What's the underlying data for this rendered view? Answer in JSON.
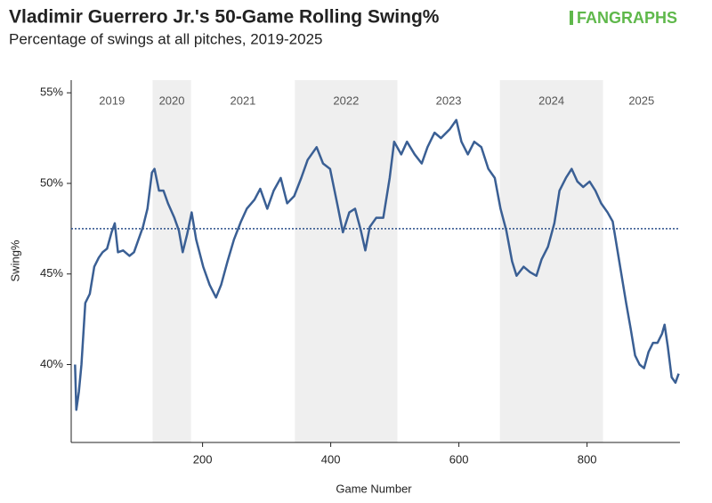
{
  "chart_data": {
    "type": "line",
    "title": "Vladimir Guerrero Jr.'s 50-Game Rolling Swing%",
    "subtitle": "Percentage of swings at all pitches, 2019-2025",
    "brand": "FANGRAPHS",
    "xlabel": "Game Number",
    "ylabel": "Swing%",
    "xlim": [
      -5,
      945
    ],
    "ylim": [
      35.7,
      55.7
    ],
    "xticks": [
      200,
      400,
      600,
      800
    ],
    "yticks": [
      {
        "value": 40,
        "label": "40%"
      },
      {
        "value": 45,
        "label": "45%"
      },
      {
        "value": 50,
        "label": "50%"
      },
      {
        "value": 55,
        "label": "55%"
      }
    ],
    "reference_line": 47.5,
    "seasons": [
      {
        "name": "2019",
        "start": -5,
        "end": 122,
        "shaded": false
      },
      {
        "name": "2020",
        "start": 122,
        "end": 182,
        "shaded": true
      },
      {
        "name": "2021",
        "start": 182,
        "end": 344,
        "shaded": false
      },
      {
        "name": "2022",
        "start": 344,
        "end": 504,
        "shaded": true
      },
      {
        "name": "2023",
        "start": 504,
        "end": 664,
        "shaded": false
      },
      {
        "name": "2024",
        "start": 664,
        "end": 825,
        "shaded": true
      },
      {
        "name": "2025",
        "start": 825,
        "end": 945,
        "shaded": false
      }
    ],
    "shade_color": "#efefef",
    "x": [
      1,
      3,
      7,
      11,
      17,
      24,
      31,
      38,
      44,
      51,
      58,
      63,
      68,
      76,
      86,
      93,
      100,
      107,
      114,
      121,
      125,
      132,
      139,
      146,
      156,
      163,
      169,
      176,
      183,
      190,
      201,
      211,
      221,
      229,
      239,
      249,
      260,
      269,
      281,
      290,
      301,
      311,
      322,
      332,
      343,
      354,
      364,
      378,
      388,
      399,
      410,
      419,
      429,
      438,
      447,
      454,
      461,
      471,
      482,
      492,
      499,
      510,
      519,
      531,
      542,
      551,
      562,
      572,
      586,
      596,
      604,
      614,
      624,
      635,
      646,
      656,
      665,
      674,
      683,
      690,
      701,
      711,
      721,
      729,
      739,
      749,
      757,
      767,
      776,
      785,
      794,
      804,
      813,
      822,
      832,
      840,
      847,
      854,
      861,
      868,
      875,
      882,
      889,
      896,
      903,
      910,
      917,
      921,
      926,
      932,
      938,
      943
    ],
    "series": [
      {
        "name": "Swing%",
        "color": "#3a5f94",
        "values": [
          40.0,
          37.5,
          38.5,
          40.0,
          43.4,
          43.9,
          45.4,
          45.9,
          46.2,
          46.4,
          47.3,
          47.8,
          46.2,
          46.3,
          46.0,
          46.2,
          46.9,
          47.6,
          48.6,
          50.6,
          50.8,
          49.6,
          49.6,
          48.9,
          48.1,
          47.4,
          46.2,
          47.2,
          48.4,
          46.9,
          45.4,
          44.4,
          43.7,
          44.4,
          45.7,
          46.9,
          47.9,
          48.6,
          49.1,
          49.7,
          48.6,
          49.6,
          50.3,
          48.9,
          49.3,
          50.3,
          51.3,
          52.0,
          51.1,
          50.8,
          48.9,
          47.3,
          48.4,
          48.6,
          47.4,
          46.3,
          47.6,
          48.1,
          48.1,
          50.3,
          52.3,
          51.6,
          52.3,
          51.6,
          51.1,
          52.0,
          52.8,
          52.5,
          53.0,
          53.5,
          52.3,
          51.6,
          52.3,
          52.0,
          50.8,
          50.3,
          48.6,
          47.4,
          45.7,
          44.9,
          45.4,
          45.1,
          44.9,
          45.8,
          46.5,
          47.8,
          49.6,
          50.3,
          50.8,
          50.1,
          49.8,
          50.1,
          49.6,
          48.9,
          48.4,
          47.9,
          46.4,
          44.9,
          43.4,
          42.0,
          40.5,
          40.0,
          39.8,
          40.7,
          41.2,
          41.2,
          41.7,
          42.2,
          41.0,
          39.3,
          39.0,
          39.5
        ]
      }
    ]
  }
}
